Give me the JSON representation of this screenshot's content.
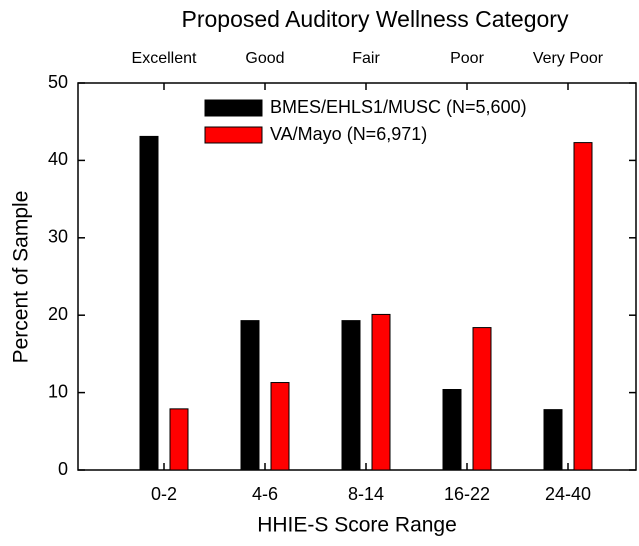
{
  "chart_data": {
    "type": "bar",
    "title": "Proposed Auditory Wellness Category",
    "top_categories": [
      "Excellent",
      "Good",
      "Fair",
      "Poor",
      "Very Poor"
    ],
    "categories": [
      "0-2",
      "4-6",
      "8-14",
      "16-22",
      "24-40"
    ],
    "x_label": "HHIE-S Score Range",
    "y_label": "Percent of Sample",
    "series": [
      {
        "name": "BMES/EHLS1/MUSC (N=5,600)",
        "color": "#000000",
        "values": [
          43.1,
          19.3,
          19.3,
          10.4,
          7.8
        ]
      },
      {
        "name": "VA/Mayo (N=6,971)",
        "color": "#ff0000",
        "values": [
          7.9,
          11.3,
          20.1,
          18.4,
          42.3
        ]
      }
    ],
    "ylim": [
      0,
      50
    ],
    "yticks": [
      0,
      10,
      20,
      30,
      40,
      50
    ],
    "grid": false,
    "legend": "top-right"
  }
}
